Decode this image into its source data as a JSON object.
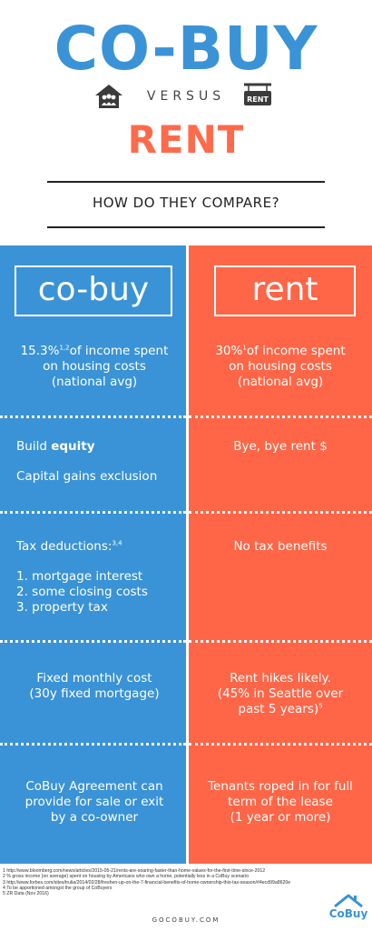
{
  "header": {
    "title": "CO-BUY",
    "versus": "VERSUS",
    "rent_sign": "RENT",
    "subtitle": "RENT",
    "compare": "HOW DO THEY COMPARE?"
  },
  "colors": {
    "cobuy_blue": "#3a93d6",
    "rent_orange": "#fe6647"
  },
  "icons": {
    "left": "house-people-icon",
    "right": "rent-sign-icon",
    "logo": "house-roof-icon"
  },
  "cobuy": {
    "heading": "co-buy",
    "income_pct": "15.3%",
    "income_sup": "1,2",
    "income_rest": "of income spent",
    "income_line2": "on housing costs",
    "income_line3": "(national avg)",
    "build": "Build ",
    "equity": "equity",
    "capital": "Capital gains exclusion",
    "tax_label": "Tax deductions:",
    "tax_sup": "3,4",
    "tax_items": [
      "1. mortgage interest",
      "2. some closing costs",
      "3. property tax"
    ],
    "fixed_line1": "Fixed monthly cost",
    "fixed_line2": "(30y fixed mortgage)",
    "agreement_line1": "CoBuy Agreement can",
    "agreement_line2": "provide for sale or exit",
    "agreement_line3": "by a co-owner"
  },
  "rent": {
    "heading": "rent",
    "income_pct": "30%",
    "income_sup": "1",
    "income_rest": "of income spent",
    "income_line2": "on housing costs",
    "income_line3": "(national avg)",
    "bye": "Bye, bye rent $",
    "no_tax": "No tax benefits",
    "hikes_line1": "Rent hikes likely.",
    "hikes_line2": "(45% in Seattle over",
    "hikes_line3": "past 5 years)",
    "hikes_sup": "5",
    "tenants_line1": "Tenants roped in for full",
    "tenants_line2": "term of the lease",
    "tenants_line3": "(1 year or more)"
  },
  "footnotes": [
    "1 http://www.bloomberg.com/news/articles/2015-05-21/rents-are-soaring-faster-than-home-values-for-the-first-time-since-2012",
    "2 % gross income (on average) spent on housing by Americans who own a home, potentially less in a CoBuy scenario",
    "3 http://www.forbes.com/sites/trulia/2014/02/28/freshen-up-on-the-7-financial-benefits-of-home-ownership-this-tax-season/#4ecd99a8620e",
    "4 To be apportioned amongst the group of CoBuyers",
    "5 ZR Data (Nov 2016)"
  ],
  "site": "GOCOBUY.COM",
  "logo_text": "CoBuy"
}
